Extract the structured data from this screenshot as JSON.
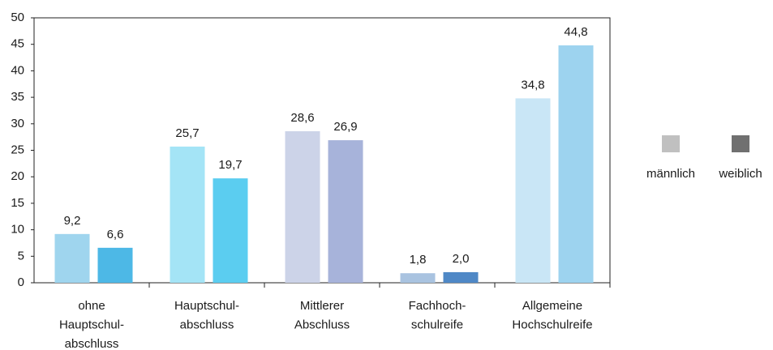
{
  "chart_data": {
    "type": "bar",
    "categories": [
      [
        "ohne",
        "Hauptschul-",
        "abschluss"
      ],
      [
        "Hauptschul-",
        "abschluss"
      ],
      [
        "Mittlerer",
        "Abschluss"
      ],
      [
        "Fachhoch-",
        "schulreife"
      ],
      [
        "Allgemeine",
        "Hochschulreife"
      ]
    ],
    "series": [
      {
        "name": "männlich",
        "color": "#c0c0c0",
        "colors": [
          "#9fd5ee",
          "#a4e4f6",
          "#ccd3e8",
          "#a9c3e0",
          "#c9e6f6"
        ],
        "values": [
          9.2,
          25.7,
          28.6,
          1.8,
          34.8
        ],
        "value_labels": [
          "9,2",
          "25,7",
          "28,6",
          "1,8",
          "34,8"
        ]
      },
      {
        "name": "weiblich",
        "color": "#707070",
        "colors": [
          "#4db8e6",
          "#5bcdf0",
          "#a7b3da",
          "#4f88c6",
          "#9dd3ef"
        ],
        "values": [
          6.6,
          19.7,
          26.9,
          2.0,
          44.8
        ],
        "value_labels": [
          "6,6",
          "19,7",
          "26,9",
          "2,0",
          "44,8"
        ]
      }
    ],
    "ylim": [
      0,
      50
    ],
    "yticks": [
      0,
      5,
      10,
      15,
      20,
      25,
      30,
      35,
      40,
      45,
      50
    ],
    "grid": false,
    "legend": "right"
  }
}
